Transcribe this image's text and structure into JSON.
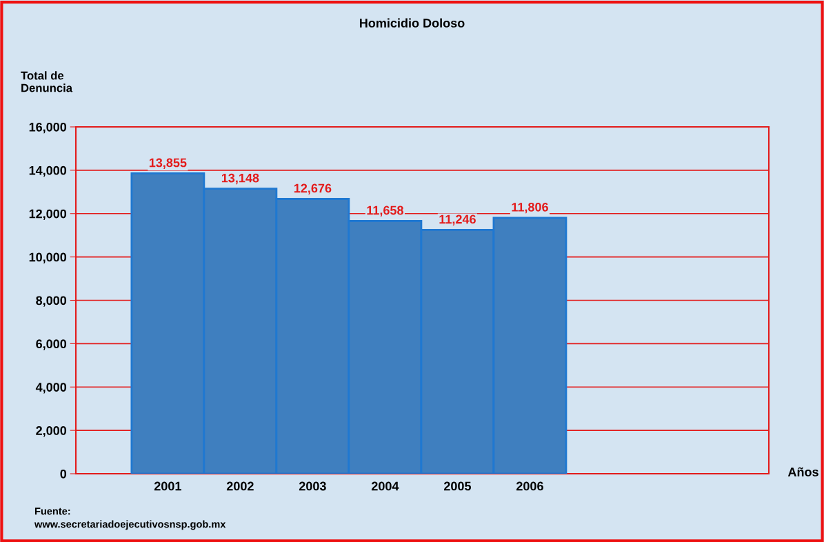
{
  "chart_data": {
    "type": "bar",
    "title": "Homicidio Doloso",
    "ylabel": "Total de\nDenuncia",
    "categories": [
      "2001",
      "2002",
      "2003",
      "2004",
      "2005",
      "2006"
    ],
    "values": [
      13855,
      13148,
      12676,
      11658,
      11246,
      11806
    ],
    "color": "#3f7fbf",
    "value_labels": [
      "13,855",
      "13,148",
      "12,676",
      "11,658",
      "11,246",
      "11,806"
    ],
    "ylim": [
      0,
      16000
    ],
    "yticks": [
      0,
      {
        "value": 2000,
        "label": "2,000"
      },
      {
        "value": 4000,
        "label": "4,000"
      },
      {
        "value": 6000,
        "label": "6,000"
      },
      {
        "value": 8000,
        "label": "8,000"
      },
      {
        "value": 10000,
        "label": "10,000"
      },
      {
        "value": 12000,
        "label": "12,000"
      },
      {
        "value": 14000,
        "label": "14,000"
      },
      {
        "value": 16000,
        "label": "16,000"
      }
    ],
    "grid": "y",
    "annotations": [
      "Años",
      "Fuente:\nwww.secretariadoejecutivosnsp.gob.mx"
    ]
  }
}
